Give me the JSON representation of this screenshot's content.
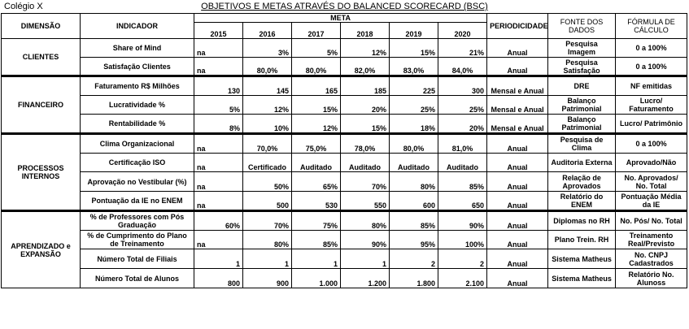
{
  "header": {
    "school": "Colégio X",
    "title": "OBJETIVOS E METAS ATRAVÉS DO BALANCED SCORECARD (BSC)"
  },
  "columns": {
    "dimensao": "DIMENSÃO",
    "indicador": "INDICADOR",
    "meta": "META",
    "years": [
      "2015",
      "2016",
      "2017",
      "2018",
      "2019",
      "2020"
    ],
    "periodicidade": "PERIODICIDADE",
    "fonte": "FONTE DOS DADOS",
    "formula": "FÓRMULA DE CÁLCULO"
  },
  "groups": [
    {
      "dimension": "CLIENTES",
      "rows": [
        {
          "indicator": "Share of Mind",
          "values": [
            "na",
            "3%",
            "5%",
            "12%",
            "15%",
            "21%"
          ],
          "period": "Anual",
          "source": "Pesquisa Imagem",
          "formula": "0 a 100%"
        },
        {
          "indicator": "Satisfação Clientes",
          "values": [
            "na",
            "80,0%",
            "80,0%",
            "82,0%",
            "83,0%",
            "84,0%"
          ],
          "period": "Anual",
          "source": "Pesquisa Satisfação",
          "formula": "0 a 100%"
        }
      ]
    },
    {
      "dimension": "FINANCEIRO",
      "rows": [
        {
          "indicator": "Faturamento R$ Milhões",
          "values": [
            "130",
            "145",
            "165",
            "185",
            "225",
            "300"
          ],
          "period": "Mensal e Anual",
          "source": "DRE",
          "formula": "NF emitidas"
        },
        {
          "indicator": "Lucratividade %",
          "values": [
            "5%",
            "12%",
            "15%",
            "20%",
            "25%",
            "25%"
          ],
          "period": "Mensal e Anual",
          "source": "Balanço Patrimonial",
          "formula": "Lucro/ Faturamento"
        },
        {
          "indicator": "Rentabilidade %",
          "values": [
            "8%",
            "10%",
            "12%",
            "15%",
            "18%",
            "20%"
          ],
          "period": "Mensal e Anual",
          "source": "Balanço Patrimonial",
          "formula": "Lucro/ Patrimônio"
        }
      ]
    },
    {
      "dimension": "PROCESSOS INTERNOS",
      "rows": [
        {
          "indicator": "Clima Organizacional",
          "values": [
            "na",
            "70,0%",
            "75,0%",
            "78,0%",
            "80,0%",
            "81,0%"
          ],
          "period": "Anual",
          "source": "Pesquisa de Clima",
          "formula": "0 a 100%"
        },
        {
          "indicator": "Certificação ISO",
          "values": [
            "na",
            "Certificado",
            "Auditado",
            "Auditado",
            "Auditado",
            "Auditado"
          ],
          "period": "Anual",
          "source": "Auditoria Externa",
          "formula": "Aprovado/Não"
        },
        {
          "indicator": "Aprovação no Vestibular (%)",
          "values": [
            "na",
            "50%",
            "65%",
            "70%",
            "80%",
            "85%"
          ],
          "period": "Anual",
          "source": "Relação de Aprovados",
          "formula": "No. Aprovados/ No. Total"
        },
        {
          "indicator": "Pontuação da IE no ENEM",
          "values": [
            "na",
            "500",
            "530",
            "550",
            "600",
            "650"
          ],
          "period": "Anual",
          "source": "Relatório do ENEM",
          "formula": "Pontuação Média da IE"
        }
      ]
    },
    {
      "dimension": "APRENDIZADO e EXPANSÃO",
      "rows": [
        {
          "indicator": "% de Professores com Pós Graduação",
          "values": [
            "60%",
            "70%",
            "75%",
            "80%",
            "85%",
            "90%"
          ],
          "period": "Anual",
          "source": "Diplomas no RH",
          "formula": "No. Pós/ No. Total"
        },
        {
          "indicator": "% de Cumprimento do Plano de Treinamento",
          "values": [
            "na",
            "80%",
            "85%",
            "90%",
            "95%",
            "100%"
          ],
          "period": "Anual",
          "source": "Plano Trein. RH",
          "formula": "Treinamento Real/Previsto"
        },
        {
          "indicator": "Número Total de Filiais",
          "values": [
            "1",
            "1",
            "1",
            "1",
            "2",
            "2"
          ],
          "period": "Anual",
          "source": "Sistema Matheus",
          "formula": "No. CNPJ Cadastrados"
        },
        {
          "indicator": "Número Total de Alunos",
          "values": [
            "800",
            "900",
            "1.000",
            "1.200",
            "1.800",
            "2.100"
          ],
          "period": "Anual",
          "source": "Sistema Matheus",
          "formula": "Relatório No. Alunoss"
        }
      ]
    }
  ]
}
